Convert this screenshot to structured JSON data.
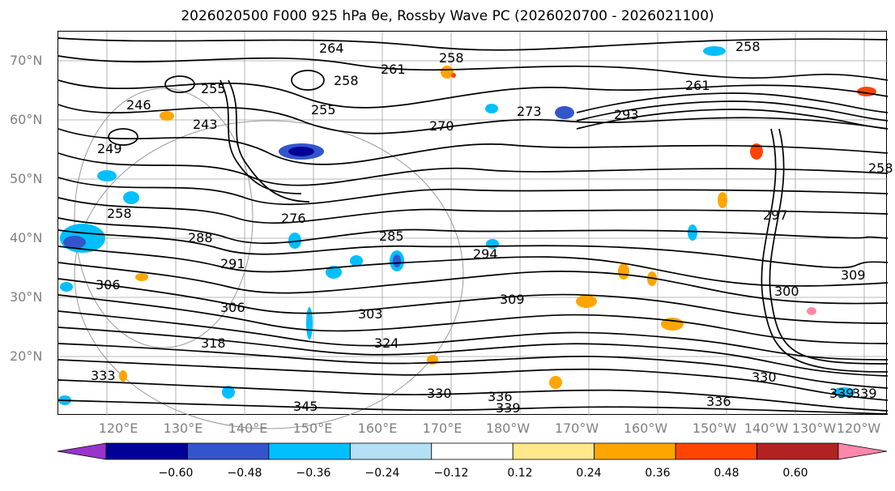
{
  "title": "2026020500 F000 925 hPa θe, Rossby Wave PC (2026020700 - 2026021100)",
  "map": {
    "lat_labels": [
      "70°N",
      "60°N",
      "50°N",
      "40°N",
      "30°N",
      "20°N"
    ],
    "lon_labels": [
      "120°E",
      "130°E",
      "140°E",
      "150°E",
      "160°E",
      "170°E",
      "180°W",
      "170°W",
      "160°W",
      "150°W",
      "140°W",
      "130°W",
      "120°W"
    ],
    "contour_labels": [
      "258",
      "264",
      "261",
      "258",
      "258",
      "255",
      "246",
      "243",
      "255",
      "270",
      "273",
      "293",
      "261",
      "258",
      "249",
      "258",
      "276",
      "285",
      "294",
      "288",
      "291",
      "306",
      "303",
      "309",
      "306",
      "318",
      "324",
      "330",
      "336",
      "339",
      "345",
      "336",
      "339",
      "330",
      "333",
      "339",
      "297",
      "300",
      "309"
    ]
  },
  "colorbar": {
    "ticks": [
      "−0.60",
      "−0.48",
      "−0.36",
      "−0.24",
      "−0.12",
      "0.12",
      "0.24",
      "0.36",
      "0.48",
      "0.60"
    ],
    "colors": [
      "#9933cc",
      "#000099",
      "#3355cc",
      "#00bfff",
      "#b3e0f5",
      "#ffffff",
      "#ffe98a",
      "#ffa500",
      "#ff4500",
      "#b22222",
      "#ff88aa"
    ],
    "grid_color": "#a0a0a0",
    "contour_color": "#000000"
  }
}
